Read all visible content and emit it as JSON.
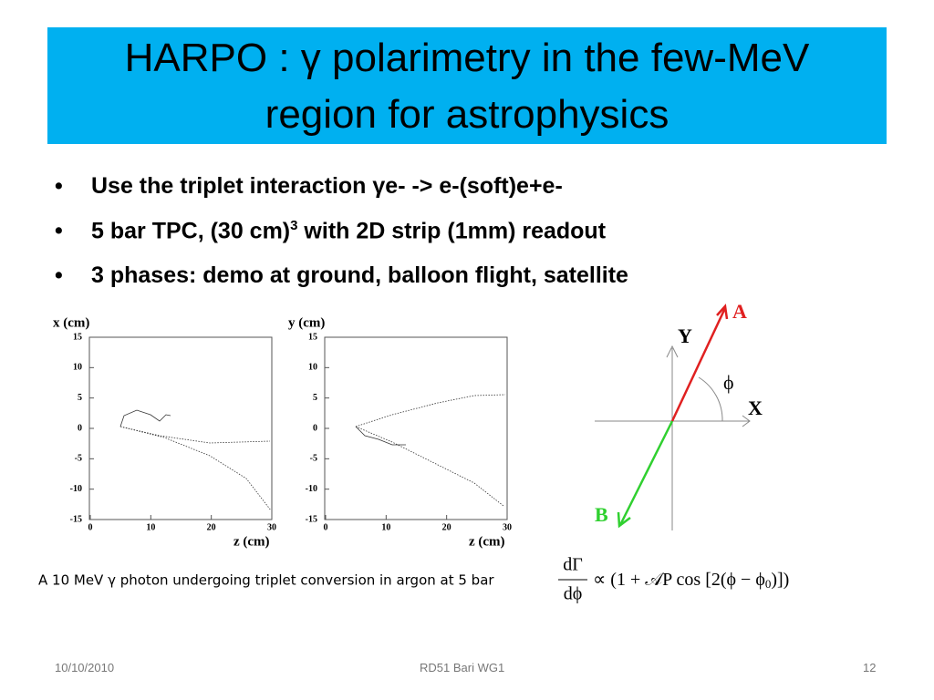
{
  "header": {
    "title": [
      "HARPO : γ polarimetry in the few-MeV",
      "region for astrophysics"
    ]
  },
  "bullets": [
    {
      "text": "Use the triplet interaction γe- -> e-(soft)e+e-"
    },
    {
      "text": "5 bar TPC, (30 cm)",
      "sup": "3",
      "rest": " with 2D strip (1mm) readout"
    },
    {
      "text": "3 phases: demo at ground, balloon flight, satellite"
    }
  ],
  "plots": [
    {
      "y_label": "x (cm)",
      "x_label": "z (cm)",
      "yticks": [
        "15",
        "10",
        "5",
        "0",
        "-5",
        "-10",
        "-15"
      ],
      "xticks": [
        "0",
        "10",
        "20",
        "30"
      ]
    },
    {
      "y_label": "y (cm)",
      "x_label": "z (cm)",
      "yticks": [
        "15",
        "10",
        "5",
        "0",
        "-5",
        "-10",
        "-15"
      ],
      "xticks": [
        "0",
        "10",
        "20",
        "30"
      ]
    }
  ],
  "caption": "A 10 MeV γ photon undergoing triplet conversion in argon at 5 bar",
  "diagram": {
    "a": "A",
    "y": "Y",
    "phi": "ϕ",
    "x": "X",
    "b": "B"
  },
  "formula": {
    "numerator": "dΓ",
    "denominator": "dϕ",
    "body": "∝ (1 + 𝒜P cos [2(ϕ − ϕ",
    "sub": "0",
    "tail": ")])"
  },
  "footer": {
    "date": "10/10/2010",
    "center": "RD51 Bari WG1",
    "page": "12"
  }
}
